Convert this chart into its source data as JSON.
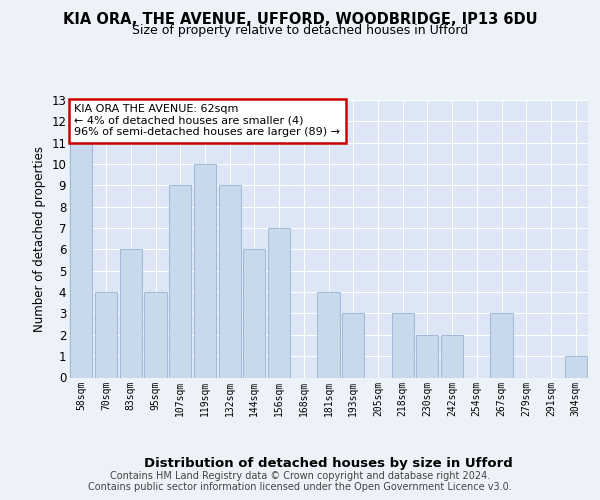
{
  "title1": "KIA ORA, THE AVENUE, UFFORD, WOODBRIDGE, IP13 6DU",
  "title2": "Size of property relative to detached houses in Ufford",
  "xlabel": "Distribution of detached houses by size in Ufford",
  "ylabel": "Number of detached properties",
  "categories": [
    "58sqm",
    "70sqm",
    "83sqm",
    "95sqm",
    "107sqm",
    "119sqm",
    "132sqm",
    "144sqm",
    "156sqm",
    "168sqm",
    "181sqm",
    "193sqm",
    "205sqm",
    "218sqm",
    "230sqm",
    "242sqm",
    "254sqm",
    "267sqm",
    "279sqm",
    "291sqm",
    "304sqm"
  ],
  "values": [
    11,
    4,
    6,
    4,
    9,
    10,
    9,
    6,
    7,
    0,
    4,
    3,
    0,
    3,
    2,
    2,
    0,
    3,
    0,
    0,
    1
  ],
  "bar_color": "#c9d9ec",
  "bar_edge_color": "#a0b8d8",
  "annotation_title": "KIA ORA THE AVENUE: 62sqm",
  "annotation_line1": "← 4% of detached houses are smaller (4)",
  "annotation_line2": "96% of semi-detached houses are larger (89) →",
  "annotation_box_color": "#ffffff",
  "annotation_border_color": "#cc0000",
  "ylim": [
    0,
    13
  ],
  "yticks": [
    0,
    1,
    2,
    3,
    4,
    5,
    6,
    7,
    8,
    9,
    10,
    11,
    12,
    13
  ],
  "footer1": "Contains HM Land Registry data © Crown copyright and database right 2024.",
  "footer2": "Contains public sector information licensed under the Open Government Licence v3.0.",
  "bg_color": "#edf2f9",
  "plot_bg_color": "#dce6f4"
}
